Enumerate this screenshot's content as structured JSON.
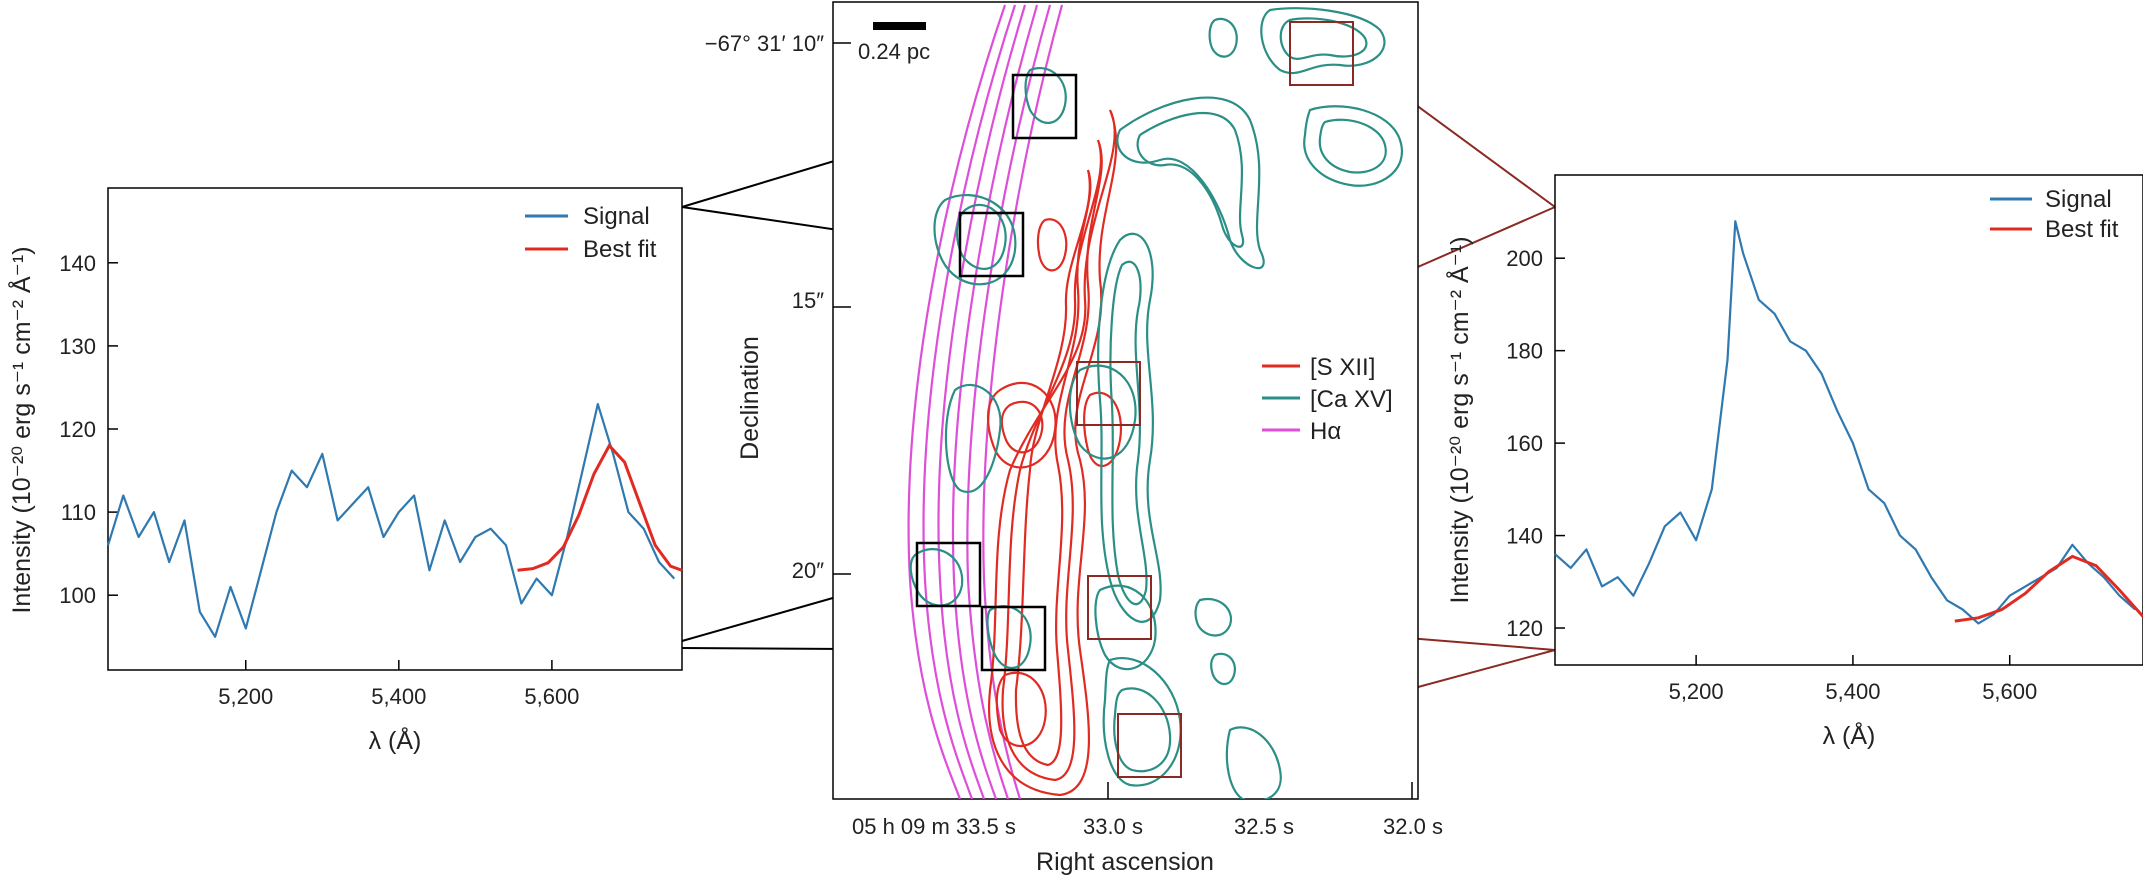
{
  "chart_data": [
    {
      "type": "line",
      "title": "",
      "xlabel": "λ (Å)",
      "ylabel": "Intensity (10⁻²⁰ erg s⁻¹ cm⁻² Å⁻¹)",
      "xlim": [
        5020,
        5770
      ],
      "ylim": [
        91,
        149
      ],
      "xticks": [
        5200,
        5400,
        5600
      ],
      "xtick_labels": [
        "5,200",
        "5,400",
        "5,600"
      ],
      "yticks": [
        100,
        110,
        120,
        130,
        140
      ],
      "ytick_labels": [
        "100",
        "110",
        "120",
        "130",
        "140"
      ],
      "legend": "top-right",
      "series": [
        {
          "name": "Signal",
          "color": "#2f79b0",
          "x": [
            5020,
            5040,
            5060,
            5080,
            5100,
            5120,
            5140,
            5160,
            5180,
            5200,
            5220,
            5240,
            5260,
            5280,
            5300,
            5320,
            5340,
            5360,
            5380,
            5400,
            5420,
            5440,
            5460,
            5480,
            5500,
            5520,
            5540,
            5560,
            5580,
            5600,
            5620,
            5640,
            5660,
            5680,
            5700,
            5720,
            5740,
            5760
          ],
          "y": [
            106,
            112,
            107,
            110,
            104,
            109,
            98,
            95,
            101,
            96,
            103,
            110,
            115,
            113,
            117,
            109,
            111,
            113,
            107,
            110,
            112,
            103,
            109,
            104,
            107,
            108,
            106,
            99,
            102,
            100,
            107,
            115,
            123,
            117,
            110,
            108,
            104,
            102
          ]
        },
        {
          "name": "Best fit",
          "color": "#e02b22",
          "x": [
            5555,
            5575,
            5595,
            5615,
            5635,
            5655,
            5675,
            5695,
            5715,
            5735,
            5755,
            5770
          ],
          "y": [
            103,
            103.2,
            103.9,
            105.8,
            109.6,
            114.6,
            118,
            116,
            111,
            106,
            103.5,
            103
          ]
        }
      ]
    },
    {
      "type": "contour",
      "title": "",
      "xlabel": "Right ascension",
      "ylabel": "Declination",
      "xticks": [
        "05 h 09 m 33.5 s",
        "33.0 s",
        "32.5 s",
        "32.0 s"
      ],
      "yticks": [
        "−67° 31′ 10″",
        "15″",
        "20″"
      ],
      "scale_bar": "0.24 pc",
      "legend": "center-right",
      "series": [
        {
          "name": "[S XII]",
          "color": "#e02b22"
        },
        {
          "name": "[Ca XV]",
          "color": "#2b8f86"
        },
        {
          "name": "Hα",
          "color": "#dd4fd8"
        }
      ]
    },
    {
      "type": "line",
      "title": "",
      "xlabel": "λ (Å)",
      "ylabel": "Intensity (10⁻²⁰ erg s⁻¹ cm⁻² Å⁻¹)",
      "xlim": [
        5020,
        5770
      ],
      "ylim": [
        112,
        218
      ],
      "xticks": [
        5200,
        5400,
        5600
      ],
      "xtick_labels": [
        "5,200",
        "5,400",
        "5,600"
      ],
      "yticks": [
        120,
        140,
        160,
        180,
        200
      ],
      "ytick_labels": [
        "120",
        "140",
        "160",
        "180",
        "200"
      ],
      "legend": "top-right",
      "series": [
        {
          "name": "Signal",
          "color": "#2f79b0",
          "x": [
            5020,
            5040,
            5060,
            5080,
            5100,
            5120,
            5140,
            5160,
            5180,
            5200,
            5220,
            5240,
            5250,
            5260,
            5280,
            5300,
            5320,
            5340,
            5360,
            5380,
            5400,
            5420,
            5440,
            5460,
            5480,
            5500,
            5520,
            5540,
            5560,
            5580,
            5600,
            5620,
            5640,
            5660,
            5680,
            5700,
            5720,
            5740,
            5760
          ],
          "y": [
            136,
            133,
            137,
            129,
            131,
            127,
            134,
            142,
            145,
            139,
            150,
            178,
            208,
            201,
            191,
            188,
            182,
            180,
            175,
            167,
            160,
            150,
            147,
            140,
            137,
            131,
            126,
            124,
            121,
            123,
            127,
            129,
            131,
            133,
            138,
            134,
            131,
            127,
            124
          ]
        },
        {
          "name": "Best fit",
          "color": "#e02b22",
          "x": [
            5530,
            5560,
            5590,
            5620,
            5650,
            5680,
            5710,
            5740,
            5770
          ],
          "y": [
            121.5,
            122.2,
            124,
            127.5,
            132.2,
            135.5,
            133.5,
            128.2,
            122.5
          ]
        }
      ]
    }
  ]
}
